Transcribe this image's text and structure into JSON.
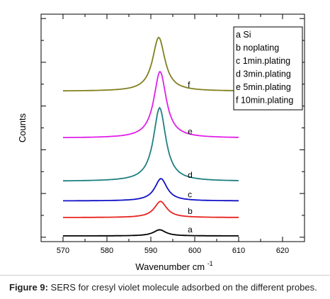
{
  "chart_data": {
    "type": "line",
    "title": "",
    "xlabel": "Wavenumber cm",
    "xlabel_superscript": "-1",
    "ylabel": "Counts",
    "xlim": [
      565,
      625
    ],
    "x_ticks": [
      570,
      580,
      590,
      600,
      610,
      620
    ],
    "y_tick_labels_shown": false,
    "grid": false,
    "legend_position": "top-right",
    "legend": [
      "a Si",
      "b noplating",
      "c 1min.plating",
      "d 3min.plating",
      "e 5min.plating",
      "f 10min.plating"
    ],
    "series": [
      {
        "name": "a",
        "color": "#000000",
        "x_range": [
          570,
          610
        ],
        "peak_x": 592,
        "baseline": 0.3,
        "peak": 1.7
      },
      {
        "name": "b",
        "color": "#e8231f",
        "x_range": [
          570,
          610
        ],
        "peak_x": 592.2,
        "baseline": 4.5,
        "peak": 8.2
      },
      {
        "name": "c",
        "color": "#1010c8",
        "x_range": [
          570,
          610
        ],
        "peak_x": 592.3,
        "baseline": 8.3,
        "peak": 13.4
      },
      {
        "name": "d",
        "color": "#1f7f7f",
        "x_range": [
          570,
          610
        ],
        "peak_x": 592,
        "baseline": 12.8,
        "peak": 29.6
      },
      {
        "name": "e",
        "color": "#e020e8",
        "x_range": [
          570,
          610
        ],
        "peak_x": 592.1,
        "baseline": 22.7,
        "peak": 37.9
      },
      {
        "name": "f",
        "color": "#808020",
        "x_range": [
          570,
          610
        ],
        "peak_x": 591.8,
        "baseline": 33.4,
        "peak": 45.7
      }
    ]
  },
  "caption": {
    "label": "Figure 9:",
    "text": " SERS for cresyl violet molecule adsorbed on the different probes."
  }
}
